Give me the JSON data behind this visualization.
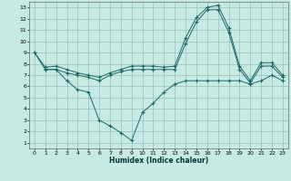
{
  "xlabel": "Humidex (Indice chaleur)",
  "bg_color": "#c8eae4",
  "grid_color": "#9abfba",
  "line_color": "#1a6666",
  "xlim": [
    -0.5,
    23.5
  ],
  "ylim": [
    0.5,
    13.5
  ],
  "yticks": [
    1,
    2,
    3,
    4,
    5,
    6,
    7,
    8,
    9,
    10,
    11,
    12,
    13
  ],
  "xticks": [
    0,
    1,
    2,
    3,
    4,
    5,
    6,
    7,
    8,
    9,
    10,
    11,
    12,
    13,
    14,
    15,
    16,
    17,
    18,
    19,
    20,
    21,
    22,
    23
  ],
  "line1_x": [
    0,
    1,
    2,
    3,
    4,
    5,
    6,
    7,
    8,
    9,
    10,
    11,
    12,
    13,
    14,
    15,
    16,
    17,
    18,
    19,
    20,
    21,
    22,
    23
  ],
  "line1_y": [
    9.0,
    7.7,
    7.8,
    7.5,
    7.2,
    7.0,
    6.8,
    7.2,
    7.5,
    7.8,
    7.8,
    7.8,
    7.7,
    7.8,
    10.3,
    12.1,
    13.0,
    13.2,
    11.2,
    7.8,
    6.5,
    8.1,
    8.1,
    7.0
  ],
  "line2_x": [
    0,
    1,
    2,
    3,
    4,
    5,
    6,
    7,
    8,
    9,
    10,
    11,
    12,
    13,
    14,
    15,
    16,
    17,
    18,
    19,
    20,
    21,
    22,
    23
  ],
  "line2_y": [
    9.0,
    7.5,
    7.5,
    7.2,
    7.0,
    6.8,
    6.5,
    7.0,
    7.3,
    7.5,
    7.5,
    7.5,
    7.5,
    7.5,
    9.8,
    11.7,
    12.8,
    12.8,
    10.8,
    7.5,
    6.3,
    7.8,
    7.8,
    6.8
  ],
  "line3_x": [
    1,
    2,
    3,
    4,
    5,
    6,
    7,
    8,
    9,
    10,
    11,
    12,
    13,
    14,
    15,
    16,
    17,
    18,
    19,
    20,
    21,
    22,
    23
  ],
  "line3_y": [
    7.5,
    7.5,
    6.5,
    5.7,
    5.5,
    3.0,
    2.5,
    1.9,
    1.2,
    3.7,
    4.5,
    5.5,
    6.2,
    6.5,
    6.5,
    6.5,
    6.5,
    6.5,
    6.5,
    6.2,
    6.5,
    7.0,
    6.5
  ]
}
